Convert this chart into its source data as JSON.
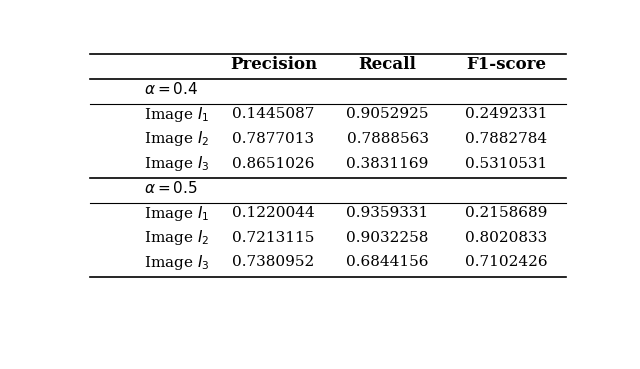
{
  "col_headers": [
    "Precision",
    "Recall",
    "F1-score"
  ],
  "sections": [
    {
      "label": "$\\alpha = 0.4$",
      "rows": [
        {
          "name": "Image $I_1$",
          "values": [
            "0.1445087",
            "0.9052925",
            "0.2492331"
          ]
        },
        {
          "name": "Image $I_2$",
          "values": [
            "0.7877013",
            "0.7888563",
            "0.7882784"
          ]
        },
        {
          "name": "Image $I_3$",
          "values": [
            "0.8651026",
            "0.3831169",
            "0.5310531"
          ]
        }
      ]
    },
    {
      "label": "$\\alpha = 0.5$",
      "rows": [
        {
          "name": "Image $I_1$",
          "values": [
            "0.1220044",
            "0.9359331",
            "0.2158689"
          ]
        },
        {
          "name": "Image $I_2$",
          "values": [
            "0.7213115",
            "0.9032258",
            "0.8020833"
          ]
        },
        {
          "name": "Image $I_3$",
          "values": [
            "0.7380952",
            "0.6844156",
            "0.7102426"
          ]
        }
      ]
    }
  ],
  "bg_color": "#ffffff",
  "text_color": "#000000",
  "font_size": 11,
  "header_font_size": 12
}
